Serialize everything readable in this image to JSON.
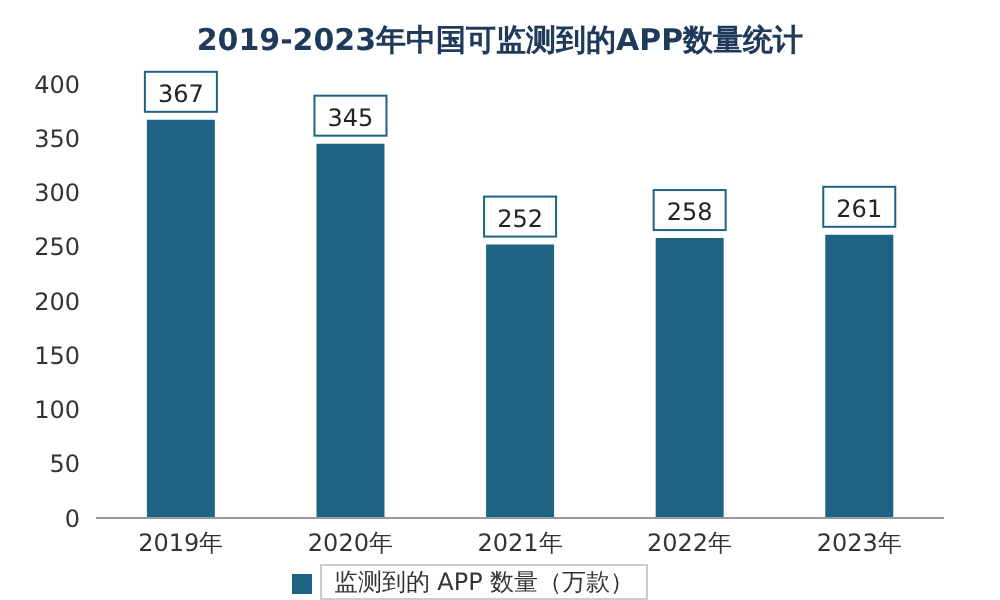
{
  "chart_data": {
    "type": "bar",
    "title": "2019-2023年中国可监测到的APP数量统计",
    "categories": [
      "2019年",
      "2020年",
      "2021年",
      "2022年",
      "2023年"
    ],
    "series": [
      {
        "name": "监测到的 APP 数量（万款）",
        "color": "#1f6384",
        "values": [
          367,
          345,
          252,
          258,
          261
        ]
      }
    ],
    "ylim": [
      0,
      400
    ],
    "yticks": [
      0,
      50,
      100,
      150,
      200,
      250,
      300,
      350,
      400
    ],
    "grid": false,
    "legend": "bottom",
    "data_labels": true
  }
}
